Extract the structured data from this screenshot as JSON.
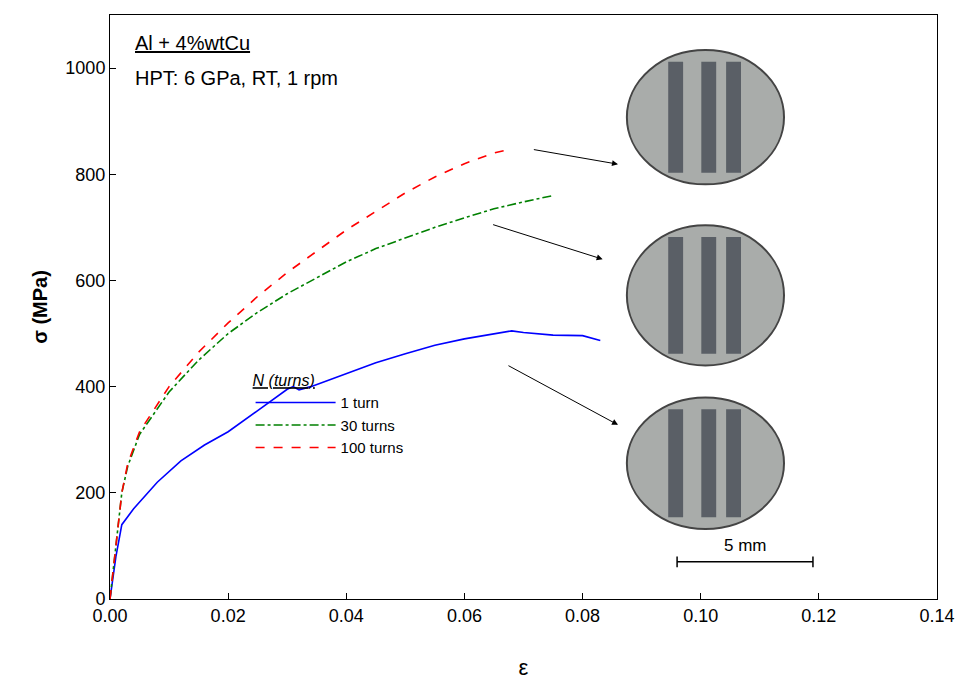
{
  "chart_data": {
    "type": "line",
    "x_label": "ε",
    "y_label": "σ (MPa)",
    "annotations": [
      "Al + 4%wtCu",
      "HPT: 6 GPa, RT, 1 rpm",
      "5 mm"
    ],
    "legend_title": "N (turns)",
    "legend": "left",
    "grid": false,
    "xlim": [
      0,
      0.14
    ],
    "xticks": [
      {
        "value": 0,
        "label": "0.00"
      },
      {
        "value": 0.02,
        "label": "0.02"
      },
      {
        "value": 0.04,
        "label": "0.04"
      },
      {
        "value": 0.06,
        "label": "0.06"
      },
      {
        "value": 0.08,
        "label": "0.08"
      },
      {
        "value": 0.1,
        "label": "0.10"
      },
      {
        "value": 0.12,
        "label": "0.12"
      },
      {
        "value": 0.14,
        "label": "0.14"
      }
    ],
    "ylim": [
      0,
      1100
    ],
    "yticks": [
      0,
      200,
      400,
      600,
      800,
      1000
    ],
    "series": [
      {
        "name": "1 turn",
        "color": "#0000ff",
        "line_style": "solid",
        "x": [
          0,
          0.001,
          0.002,
          0.004,
          0.008,
          0.012,
          0.016,
          0.02,
          0.025,
          0.03,
          0.031,
          0.032,
          0.034,
          0.04,
          0.045,
          0.05,
          0.055,
          0.06,
          0.065,
          0.068,
          0.07,
          0.075,
          0.08,
          0.083
        ],
        "values": [
          0,
          80,
          140,
          170,
          220,
          260,
          290,
          315,
          355,
          395,
          400,
          394,
          400,
          425,
          445,
          462,
          478,
          490,
          500,
          505,
          502,
          497,
          496,
          487
        ]
      },
      {
        "name": "30 turns",
        "color": "#008000",
        "line_style": "dashdot",
        "x": [
          0,
          0.001,
          0.002,
          0.003,
          0.005,
          0.01,
          0.015,
          0.02,
          0.025,
          0.03,
          0.035,
          0.04,
          0.045,
          0.05,
          0.055,
          0.06,
          0.065,
          0.07,
          0.075
        ],
        "values": [
          0,
          100,
          200,
          250,
          310,
          390,
          450,
          500,
          540,
          575,
          605,
          635,
          660,
          680,
          700,
          718,
          735,
          748,
          760
        ]
      },
      {
        "name": "100 turns",
        "color": "#ff0000",
        "line_style": "dash",
        "x": [
          0,
          0.001,
          0.002,
          0.003,
          0.005,
          0.01,
          0.015,
          0.02,
          0.025,
          0.03,
          0.035,
          0.04,
          0.045,
          0.05,
          0.055,
          0.06,
          0.065,
          0.068
        ],
        "values": [
          0,
          100,
          200,
          255,
          315,
          400,
          465,
          520,
          570,
          615,
          655,
          695,
          730,
          765,
          795,
          820,
          840,
          848
        ]
      }
    ]
  }
}
